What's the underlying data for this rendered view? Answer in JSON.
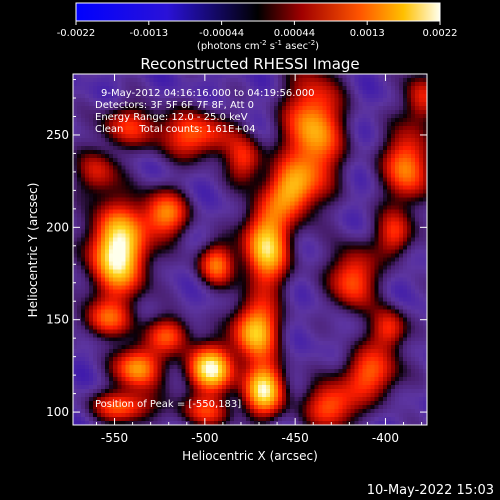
{
  "chart_data": {
    "type": "heatmap",
    "title": "Reconstructed RHESSI Image",
    "xlabel": "Heliocentric X (arcsec)",
    "ylabel": "Heliocentric Y (arcsec)",
    "xlim": [
      -573,
      -377
    ],
    "ylim": [
      93,
      283
    ],
    "x_ticks": [
      -550,
      -500,
      -450,
      -400
    ],
    "y_ticks": [
      100,
      150,
      200,
      250
    ],
    "colorbar": {
      "range": [
        -0.0022,
        0.0022
      ],
      "ticks": [
        "-0.0022",
        "-0.0013",
        "-0.00044",
        "0.00044",
        "0.0013",
        "0.0022"
      ],
      "unit_label": "(photons cm",
      "unit_exp1": "-2",
      "unit_mid": " s",
      "unit_exp2": "-1",
      "unit_mid2": " asec",
      "unit_exp3": "-2",
      "unit_end": ")"
    },
    "info_lines": [
      "9-May-2012 04:16:16.000 to 04:19:56.000",
      "Detectors: 3F 5F 6F 7F 8F, Att 0",
      "Energy Range: 12.0 - 25.0 keV",
      "Clean     Total counts: 1.61E+04"
    ],
    "peak_label": "Position of Peak = [-550,183]",
    "blobs": [
      {
        "x": -548,
        "y": 187,
        "v": 1.0,
        "sx": 11,
        "sy": 17
      },
      {
        "x": -537,
        "y": 124,
        "v": 0.72,
        "sx": 9,
        "sy": 8
      },
      {
        "x": -545,
        "y": 103,
        "v": 0.55,
        "sx": 12,
        "sy": 6
      },
      {
        "x": -497,
        "y": 123,
        "v": 0.92,
        "sx": 9,
        "sy": 9
      },
      {
        "x": -467,
        "y": 112,
        "v": 0.88,
        "sx": 8,
        "sy": 10
      },
      {
        "x": -472,
        "y": 144,
        "v": 0.8,
        "sx": 9,
        "sy": 11
      },
      {
        "x": -466,
        "y": 190,
        "v": 0.85,
        "sx": 9,
        "sy": 16
      },
      {
        "x": -522,
        "y": 207,
        "v": 0.62,
        "sx": 9,
        "sy": 9
      },
      {
        "x": -494,
        "y": 180,
        "v": 0.58,
        "sx": 7,
        "sy": 8
      },
      {
        "x": -440,
        "y": 252,
        "v": 0.74,
        "sx": 11,
        "sy": 22
      },
      {
        "x": -452,
        "y": 220,
        "v": 0.6,
        "sx": 9,
        "sy": 10
      },
      {
        "x": -505,
        "y": 250,
        "v": 0.56,
        "sx": 14,
        "sy": 9
      },
      {
        "x": -388,
        "y": 233,
        "v": 0.66,
        "sx": 9,
        "sy": 14
      },
      {
        "x": -418,
        "y": 172,
        "v": 0.58,
        "sx": 9,
        "sy": 12
      },
      {
        "x": -408,
        "y": 121,
        "v": 0.55,
        "sx": 11,
        "sy": 10
      },
      {
        "x": -430,
        "y": 103,
        "v": 0.58,
        "sx": 10,
        "sy": 9
      },
      {
        "x": -398,
        "y": 145,
        "v": 0.48,
        "sx": 7,
        "sy": 8
      },
      {
        "x": -520,
        "y": 142,
        "v": 0.5,
        "sx": 9,
        "sy": 7
      },
      {
        "x": -555,
        "y": 150,
        "v": 0.46,
        "sx": 10,
        "sy": 7
      },
      {
        "x": -560,
        "y": 230,
        "v": 0.4,
        "sx": 8,
        "sy": 9
      },
      {
        "x": -478,
        "y": 236,
        "v": 0.45,
        "sx": 7,
        "sy": 9
      },
      {
        "x": -542,
        "y": 255,
        "v": 0.42,
        "sx": 12,
        "sy": 8
      },
      {
        "x": -395,
        "y": 196,
        "v": 0.48,
        "sx": 7,
        "sy": 9
      },
      {
        "x": -380,
        "y": 270,
        "v": 0.44,
        "sx": 7,
        "sy": 10
      },
      {
        "x": -500,
        "y": 100,
        "v": 0.42,
        "sx": 11,
        "sy": 6
      }
    ]
  },
  "timestamp": "10-May-2022 15:03"
}
